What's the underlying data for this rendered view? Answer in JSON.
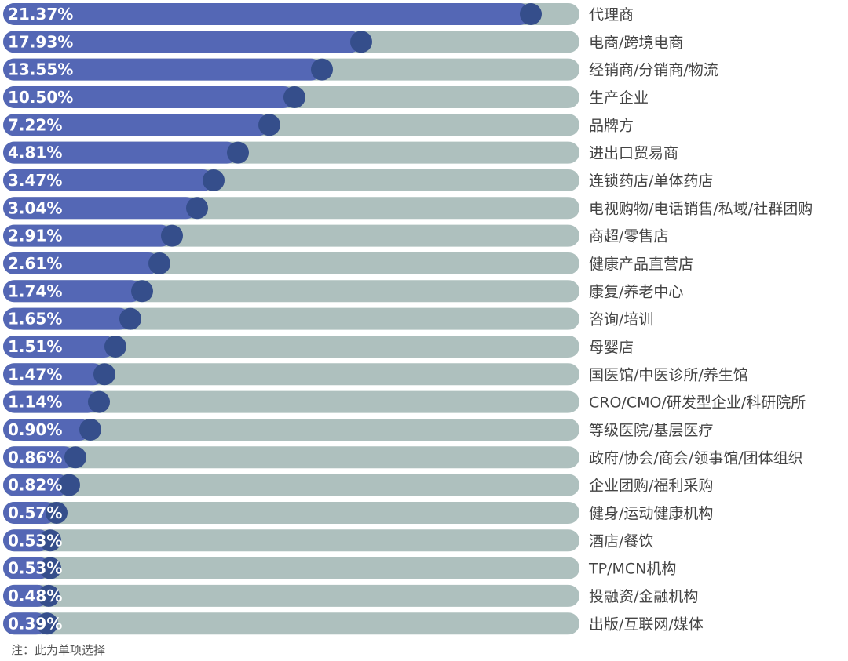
{
  "chart_data": {
    "type": "bar",
    "orientation": "horizontal",
    "value_unit": "%",
    "categories": [
      "代理商",
      "电商/跨境电商",
      "经销商/分销商/物流",
      "生产企业",
      "品牌方",
      "进出口贸易商",
      "连锁药店/单体药店",
      "电视购物/电话销售/私域/社群团购",
      "商超/零售店",
      "健康产品直营店",
      "康复/养老中心",
      "咨询/培训",
      "母婴店",
      "国医馆/中医诊所/养生馆",
      "CRO/CMO/研发型企业/科研院所",
      "等级医院/基层医疗",
      "政府/协会/商会/领事馆/团体组织",
      "企业团购/福利采购",
      "健身/运动健康机构",
      "酒店/餐饮",
      "TP/MCN机构",
      "投融资/金融机构",
      "出版/互联网/媒体"
    ],
    "values": [
      21.37,
      17.93,
      13.55,
      10.5,
      7.22,
      4.81,
      3.47,
      3.04,
      2.91,
      2.61,
      1.74,
      1.65,
      1.51,
      1.47,
      1.14,
      0.9,
      0.86,
      0.82,
      0.57,
      0.53,
      0.53,
      0.48,
      0.39
    ],
    "labels": [
      "21.37%",
      "17.93%",
      "13.55%",
      "10.50%",
      "7.22%",
      "4.81%",
      "3.47%",
      "3.04%",
      "2.91%",
      "2.61%",
      "1.74%",
      "1.65%",
      "1.51%",
      "1.47%",
      "1.14%",
      "0.90%",
      "0.86%",
      "0.82%",
      "0.57%",
      "0.53%",
      "0.53%",
      "0.48%",
      "0.39%"
    ],
    "title": "",
    "xlabel": "",
    "ylabel": "",
    "grid": false,
    "legend": "none",
    "colors": {
      "track": "#aec0be",
      "bar": "#5467b5",
      "knob": "#354e8b",
      "value_text": "#ffffff",
      "category_text": "#444444"
    }
  },
  "note": "注：此为单项选择"
}
